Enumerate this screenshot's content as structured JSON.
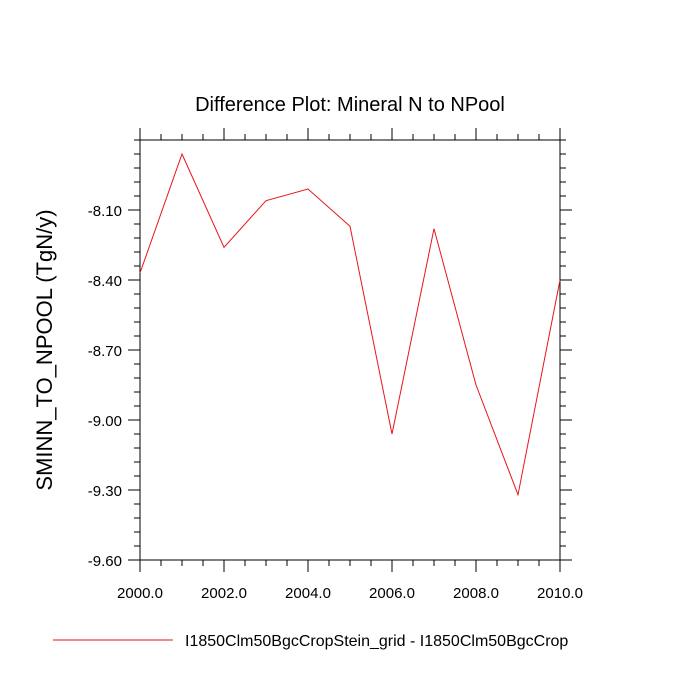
{
  "chart_data": {
    "type": "line",
    "title": "Difference Plot: Mineral N to NPool",
    "xlabel": "",
    "ylabel": "SMINN_TO_NPOOL  (TgN/y)",
    "xlim": [
      2000,
      2010
    ],
    "ylim": [
      -9.6,
      -7.8
    ],
    "xticks": [
      2000,
      2002,
      2004,
      2006,
      2008,
      2010
    ],
    "xtick_labels": [
      "2000.0",
      "2002.0",
      "2004.0",
      "2006.0",
      "2008.0",
      "2010.0"
    ],
    "yticks": [
      -9.6,
      -9.3,
      -9.0,
      -8.7,
      -8.4,
      -8.1
    ],
    "ytick_labels": [
      "-9.60",
      "-9.30",
      "-9.00",
      "-8.70",
      "-8.40",
      "-8.10"
    ],
    "grid": false,
    "legend_position": "bottom",
    "series": [
      {
        "name": "I1850Clm50BgcCropStein_grid - I1850Clm50BgcCrop",
        "color": "#e8141c",
        "x": [
          2000,
          2001,
          2002,
          2003,
          2004,
          2005,
          2006,
          2007,
          2008,
          2009,
          2010
        ],
        "y": [
          -8.37,
          -7.86,
          -8.26,
          -8.06,
          -8.01,
          -8.17,
          -9.06,
          -8.18,
          -8.85,
          -9.32,
          -8.4
        ]
      }
    ]
  }
}
